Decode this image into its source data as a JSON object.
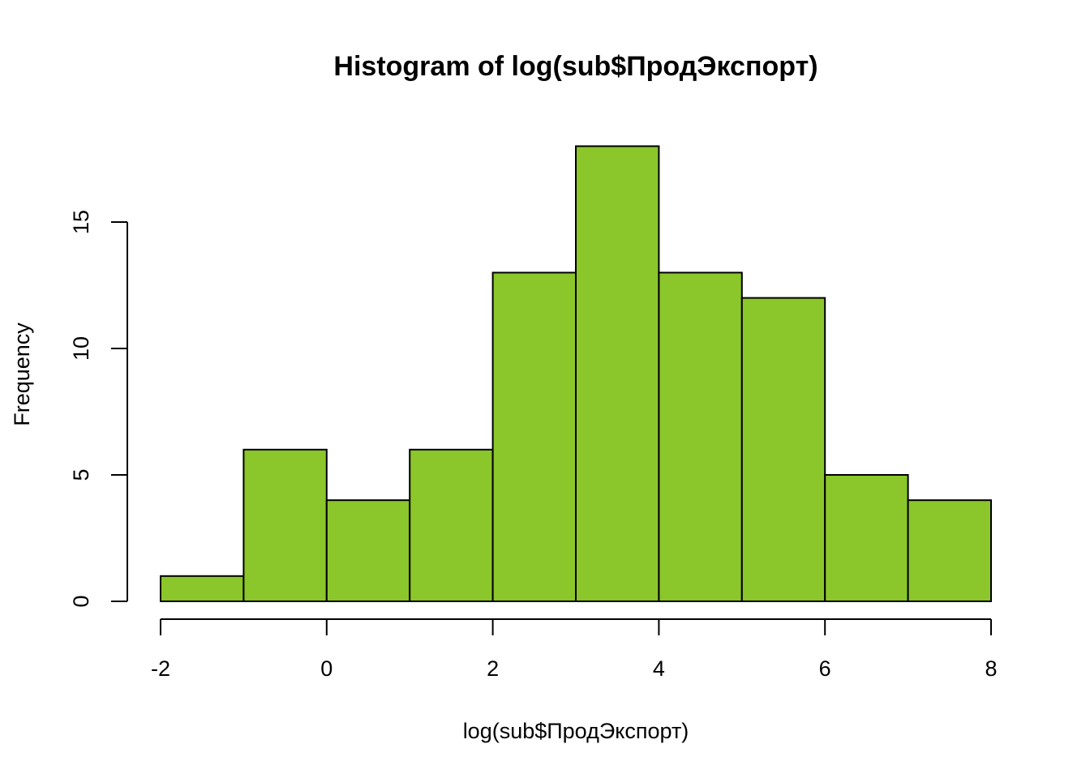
{
  "chart_data": {
    "type": "bar",
    "title": "Histogram of log(sub$ПродЭкспорт)",
    "xlabel": "log(sub$ПродЭкспорт)",
    "ylabel": "Frequency",
    "bins": [
      {
        "from": -2,
        "to": -1,
        "count": 1
      },
      {
        "from": -1,
        "to": 0,
        "count": 6
      },
      {
        "from": 0,
        "to": 1,
        "count": 4
      },
      {
        "from": 1,
        "to": 2,
        "count": 6
      },
      {
        "from": 2,
        "to": 3,
        "count": 13
      },
      {
        "from": 3,
        "to": 4,
        "count": 18
      },
      {
        "from": 4,
        "to": 5,
        "count": 13
      },
      {
        "from": 5,
        "to": 6,
        "count": 12
      },
      {
        "from": 6,
        "to": 7,
        "count": 5
      },
      {
        "from": 7,
        "to": 8,
        "count": 4
      }
    ],
    "xlim": [
      -2,
      8
    ],
    "ylim": [
      0,
      18
    ],
    "x_ticks": [
      -2,
      0,
      2,
      4,
      6,
      8
    ],
    "x_tick_labels": [
      "-2",
      "0",
      "2",
      "4",
      "6",
      "8"
    ],
    "y_ticks": [
      0,
      5,
      10,
      15
    ],
    "y_tick_labels": [
      "0",
      "5",
      "10",
      "15"
    ],
    "bar_color": "#8bc62a",
    "bar_border_color": "#000000",
    "grid": false,
    "legend": "none"
  }
}
